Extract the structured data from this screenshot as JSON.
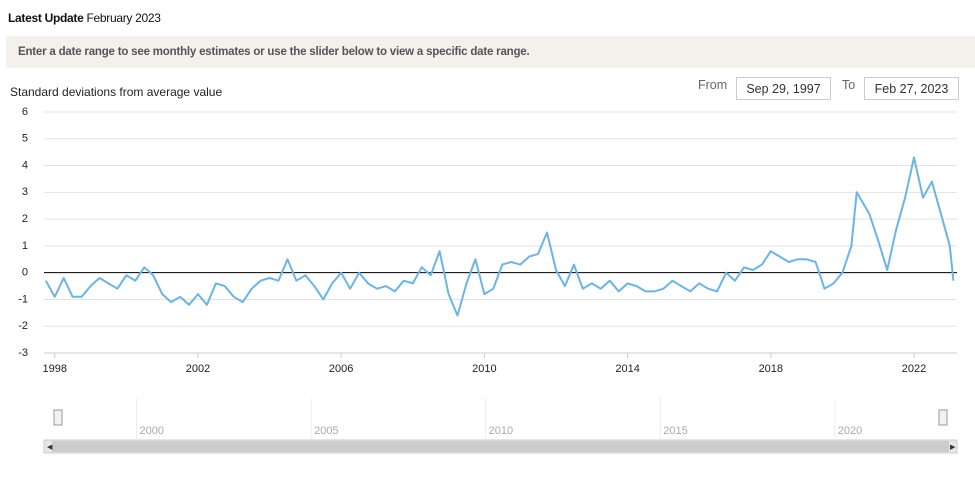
{
  "header": {
    "label": "Latest Update",
    "value": "February 2023"
  },
  "instructions": "Enter a date range to see monthly estimates or use the slider below to view a specific date range.",
  "controls": {
    "from_label": "From",
    "from_value": "Sep 29, 1997",
    "to_label": "To",
    "to_value": "Feb 27, 2023"
  },
  "chart_data": {
    "type": "line",
    "y_label": "Standard deviations from average value",
    "color": "#6cb4e4",
    "x": [
      1997.75,
      1998.0,
      1998.25,
      1998.5,
      1998.75,
      1999.0,
      1999.25,
      1999.5,
      1999.75,
      2000.0,
      2000.25,
      2000.5,
      2000.75,
      2001.0,
      2001.25,
      2001.5,
      2001.75,
      2002.0,
      2002.25,
      2002.5,
      2002.75,
      2003.0,
      2003.25,
      2003.5,
      2003.75,
      2004.0,
      2004.25,
      2004.5,
      2004.75,
      2005.0,
      2005.25,
      2005.5,
      2005.75,
      2006.0,
      2006.25,
      2006.5,
      2006.75,
      2007.0,
      2007.25,
      2007.5,
      2007.75,
      2008.0,
      2008.25,
      2008.5,
      2008.75,
      2009.0,
      2009.25,
      2009.5,
      2009.75,
      2010.0,
      2010.25,
      2010.5,
      2010.75,
      2011.0,
      2011.25,
      2011.5,
      2011.75,
      2012.0,
      2012.25,
      2012.5,
      2012.75,
      2013.0,
      2013.25,
      2013.5,
      2013.75,
      2014.0,
      2014.25,
      2014.5,
      2014.75,
      2015.0,
      2015.25,
      2015.5,
      2015.75,
      2016.0,
      2016.25,
      2016.5,
      2016.75,
      2017.0,
      2017.25,
      2017.5,
      2017.75,
      2018.0,
      2018.25,
      2018.5,
      2018.75,
      2019.0,
      2019.25,
      2019.5,
      2019.75,
      2020.0,
      2020.25,
      2020.4,
      2020.75,
      2021.0,
      2021.25,
      2021.5,
      2021.75,
      2022.0,
      2022.25,
      2022.5,
      2022.75,
      2023.0,
      2023.1
    ],
    "values": [
      -0.3,
      -0.9,
      -0.2,
      -0.9,
      -0.9,
      -0.5,
      -0.2,
      -0.4,
      -0.6,
      -0.1,
      -0.3,
      0.2,
      -0.1,
      -0.8,
      -1.1,
      -0.9,
      -1.2,
      -0.8,
      -1.2,
      -0.4,
      -0.5,
      -0.9,
      -1.1,
      -0.6,
      -0.3,
      -0.2,
      -0.3,
      0.5,
      -0.3,
      -0.1,
      -0.5,
      -1.0,
      -0.4,
      0.0,
      -0.6,
      0.0,
      -0.4,
      -0.6,
      -0.5,
      -0.7,
      -0.3,
      -0.4,
      0.2,
      -0.1,
      0.8,
      -0.8,
      -1.6,
      -0.4,
      0.5,
      -0.8,
      -0.6,
      0.3,
      0.4,
      0.3,
      0.6,
      0.7,
      1.5,
      0.1,
      -0.5,
      0.3,
      -0.6,
      -0.4,
      -0.6,
      -0.3,
      -0.7,
      -0.4,
      -0.5,
      -0.7,
      -0.7,
      -0.6,
      -0.3,
      -0.5,
      -0.7,
      -0.4,
      -0.6,
      -0.7,
      0.0,
      -0.3,
      0.2,
      0.1,
      0.3,
      0.8,
      0.6,
      0.4,
      0.5,
      0.5,
      0.4,
      -0.6,
      -0.4,
      0.0,
      1.0,
      3.0,
      2.2,
      1.2,
      0.1,
      1.6,
      2.8,
      4.3,
      2.8,
      3.4,
      2.2,
      1.0,
      -0.3
    ],
    "xlim": [
      1997.7,
      2023.2
    ],
    "xticks": [
      1998,
      2002,
      2006,
      2010,
      2014,
      2018,
      2022
    ],
    "ylim": [
      -3,
      6
    ],
    "yticks": [
      -3,
      -2,
      -1,
      0,
      1,
      2,
      3,
      4,
      5,
      6
    ],
    "grid": true
  },
  "navigator": {
    "xlim": [
      1997.35,
      2023.5
    ],
    "xticks": [
      2000,
      2005,
      2010,
      2015,
      2020
    ]
  }
}
